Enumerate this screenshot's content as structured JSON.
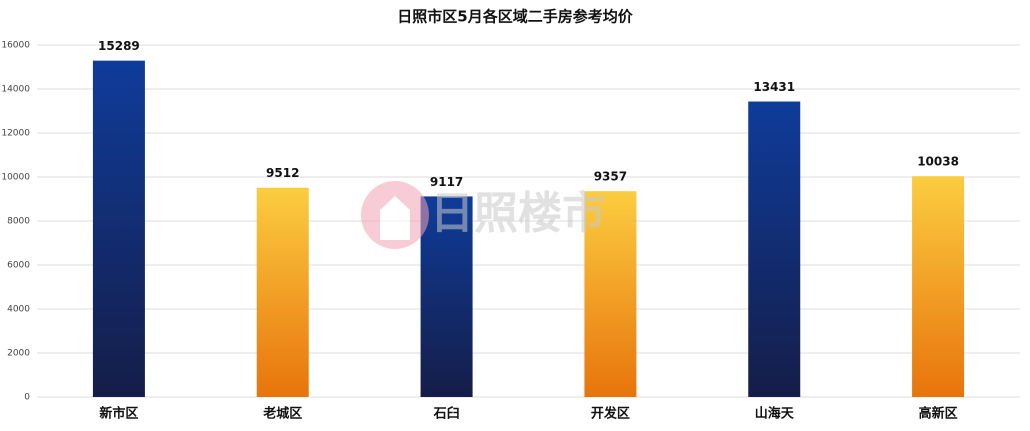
{
  "chart_data": {
    "type": "bar",
    "title": "日照市区5月各区域二手房参考均价",
    "categories": [
      "新市区",
      "老城区",
      "石臼",
      "开发区",
      "山海天",
      "高新区"
    ],
    "values": [
      15289,
      9512,
      9117,
      9357,
      13431,
      10038
    ],
    "colors": [
      {
        "top": "#0f3c9a",
        "bottom": "#151d48"
      },
      {
        "top": "#fbcd40",
        "bottom": "#e8740c"
      },
      {
        "top": "#0f3c9a",
        "bottom": "#151d48"
      },
      {
        "top": "#fbcd40",
        "bottom": "#e8740c"
      },
      {
        "top": "#0f3c9a",
        "bottom": "#151d48"
      },
      {
        "top": "#fbcd40",
        "bottom": "#e8740c"
      }
    ],
    "ylim": [
      0,
      16000
    ],
    "yticks": [
      0,
      2000,
      4000,
      6000,
      8000,
      10000,
      12000,
      14000,
      16000
    ],
    "grid": true,
    "watermark": "日照楼市"
  }
}
